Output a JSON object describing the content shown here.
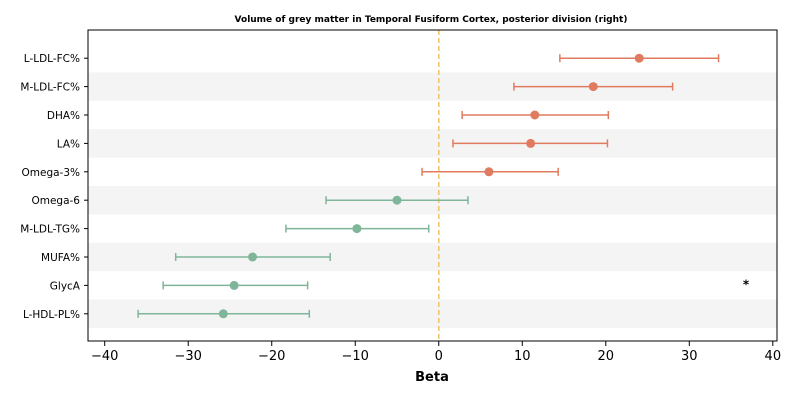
{
  "chart_data": {
    "type": "forest",
    "title": "Volume of grey matter in Temporal Fusiform Cortex, posterior division (right)",
    "xlabel": "Beta",
    "xlim": [
      -42,
      40.5
    ],
    "xticks": [
      -40,
      -30,
      -20,
      -10,
      0,
      10,
      20,
      30,
      40
    ],
    "xtick_labels": [
      "−40",
      "−30",
      "−20",
      "−10",
      "0",
      "10",
      "20",
      "30",
      "40"
    ],
    "reference_line": 0,
    "colors": {
      "positive": "#e07b5f",
      "negative": "#7fb69a",
      "reference_line": "#f0c66e",
      "band": "#f4f4f4"
    },
    "rows": [
      {
        "label": "L-LDL-FC%",
        "beta": 24.0,
        "lo": 14.5,
        "hi": 33.5
      },
      {
        "label": "M-LDL-FC%",
        "beta": 18.5,
        "lo": 9.0,
        "hi": 28.0
      },
      {
        "label": "DHA%",
        "beta": 11.5,
        "lo": 2.8,
        "hi": 20.3
      },
      {
        "label": "LA%",
        "beta": 11.0,
        "lo": 1.7,
        "hi": 20.2
      },
      {
        "label": "Omega-3%",
        "beta": 6.0,
        "lo": -2.0,
        "hi": 14.3
      },
      {
        "label": "Omega-6",
        "beta": -5.0,
        "lo": -13.5,
        "hi": 3.5
      },
      {
        "label": "M-LDL-TG%",
        "beta": -9.8,
        "lo": -18.3,
        "hi": -1.2
      },
      {
        "label": "MUFA%",
        "beta": -22.3,
        "lo": -31.5,
        "hi": -13.0
      },
      {
        "label": "GlycA",
        "beta": -24.5,
        "lo": -33.0,
        "hi": -15.7
      },
      {
        "label": "L-HDL-PL%",
        "beta": -25.8,
        "lo": -36.0,
        "hi": -15.5
      }
    ],
    "annotation": {
      "text": "*",
      "row": "GlycA"
    }
  }
}
